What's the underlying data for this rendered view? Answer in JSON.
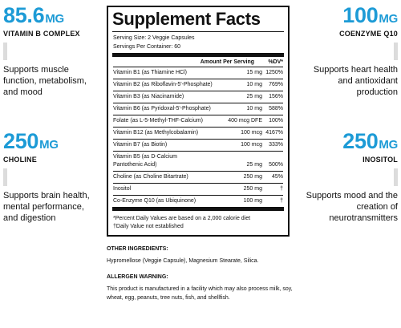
{
  "callouts": [
    {
      "amount": "85.6",
      "unit": "MG",
      "name": "VITAMIN B COMPLEX",
      "desc": "Supports muscle function, metabolism, and mood"
    },
    {
      "amount": "100",
      "unit": "MG",
      "name": "COENZYME Q10",
      "desc": "Supports heart health and antioxidant production"
    },
    {
      "amount": "250",
      "unit": "MG",
      "name": "CHOLINE",
      "desc": "Supports brain health, mental performance, and digestion"
    },
    {
      "amount": "250",
      "unit": "MG",
      "name": "INOSITOL",
      "desc": "Supports mood and the creation of neurotransmitters"
    }
  ],
  "facts": {
    "title": "Supplement Facts",
    "serving_size": "Serving Size: 2 Veggie Capsules",
    "servings_per_container": "Servings Per Container: 60",
    "col_amount": "Amount Per Serving",
    "col_dv": "%DV*",
    "rows": [
      {
        "name": "Vitamin B1 (as Thiamine HCl)",
        "amount": "15 mg",
        "dv": "1250%"
      },
      {
        "name": "Vitamin B2 (as Riboflavin-5'-Phosphate)",
        "amount": "10 mg",
        "dv": "769%"
      },
      {
        "name": "Vitamin B3 (as Niacinamide)",
        "amount": "25 mg",
        "dv": "156%"
      },
      {
        "name": "Vitamin B6 (as Pyridoxal-5'-Phosphate)",
        "amount": "10 mg",
        "dv": "588%"
      },
      {
        "name": "Folate (as L-5-Methyl-THF-Calcium)",
        "amount": "400 mcg DFE",
        "dv": "100%"
      },
      {
        "name": "Vitamin B12 (as Methylcobalamin)",
        "amount": "100 mcg",
        "dv": "4167%"
      },
      {
        "name": "Vitamin B7 (as Biotin)",
        "amount": "100 mcg",
        "dv": "333%"
      },
      {
        "name": "Vitamin B5 (as D-Calcium Pantothenic Acid)",
        "amount": "25 mg",
        "dv": "500%"
      },
      {
        "name": "Choline (as Choline Bitartrate)",
        "amount": "250 mg",
        "dv": "45%"
      },
      {
        "name": "Inositol",
        "amount": "250 mg",
        "dv": "†"
      },
      {
        "name": "Co-Enzyme Q10 (as Ubiquinone)",
        "amount": "100 mg",
        "dv": "†"
      }
    ],
    "footnote1": "*Percent Daily Values are based on a 2,000 calorie diet",
    "footnote2": "†Daily Value not established"
  },
  "other": {
    "heading": "OTHER INGREDIENTS:",
    "text": "Hypromellose (Veggie Capsule), Magnesium Stearate, Silica."
  },
  "allergen": {
    "heading": "ALLERGEN WARNING:",
    "text": "This product is manufactured in a facility which may also process milk, soy, wheat, egg, peanuts, tree nuts, fish, and shellfish."
  }
}
